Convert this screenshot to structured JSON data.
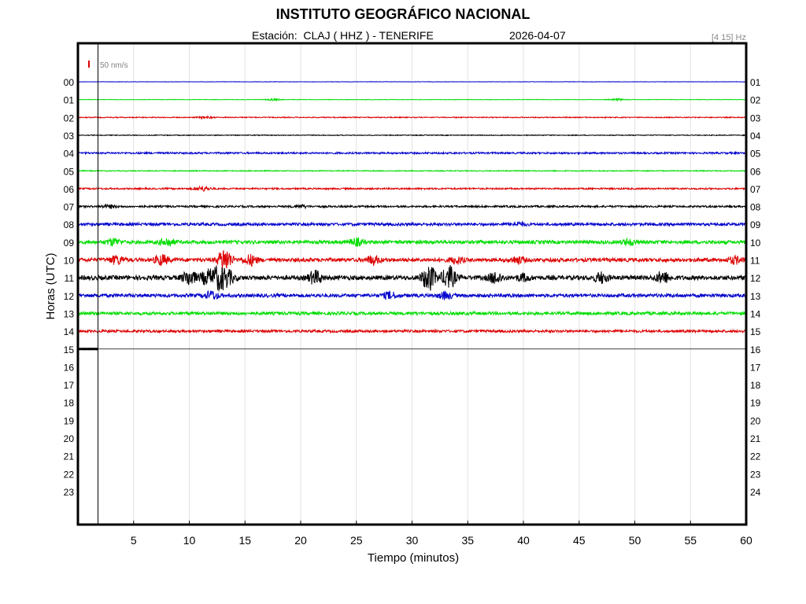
{
  "header": {
    "title": "INSTITUTO GEOGRÁFICO NACIONAL",
    "station": "Estación:  CLAJ ( HHZ ) - TENERIFE",
    "date": "2026-04-07",
    "filter": "[4 15] Hz"
  },
  "chart_data": {
    "type": "line",
    "xlabel": "Tiempo (minutos)",
    "ylabel": "Horas (UTC)",
    "xlim": [
      0,
      60
    ],
    "x_ticks": [
      5,
      10,
      15,
      20,
      25,
      30,
      35,
      40,
      45,
      50,
      55,
      60
    ],
    "left_hour_labels": [
      "00",
      "01",
      "02",
      "03",
      "04",
      "05",
      "06",
      "07",
      "08",
      "09",
      "10",
      "11",
      "12",
      "13",
      "14",
      "15",
      "16",
      "17",
      "18",
      "19",
      "20",
      "21",
      "22",
      "23"
    ],
    "right_hour_labels": [
      "01",
      "02",
      "03",
      "04",
      "05",
      "06",
      "07",
      "08",
      "09",
      "10",
      "11",
      "12",
      "13",
      "14",
      "15",
      "16",
      "17",
      "18",
      "19",
      "20",
      "21",
      "22",
      "23",
      "24"
    ],
    "scale_label": "50 nm/s",
    "scale_color": "#dd0000",
    "grid": true,
    "current_time_minute": 1.8,
    "series": [
      {
        "hour": "00",
        "color": "#0000cc",
        "noise": 0.25,
        "events": []
      },
      {
        "hour": "01",
        "color": "#00dd00",
        "noise": 0.3,
        "events": [
          {
            "t": 17.5,
            "amp": 1.2
          },
          {
            "t": 48.5,
            "amp": 1.2
          }
        ]
      },
      {
        "hour": "02",
        "color": "#dd0000",
        "noise": 0.6,
        "events": [
          {
            "t": 11.5,
            "amp": 1.2
          }
        ]
      },
      {
        "hour": "03",
        "color": "#000000",
        "noise": 0.5,
        "events": []
      },
      {
        "hour": "04",
        "color": "#0000cc",
        "noise": 1.1,
        "events": []
      },
      {
        "hour": "05",
        "color": "#00dd00",
        "noise": 0.6,
        "events": []
      },
      {
        "hour": "06",
        "color": "#dd0000",
        "noise": 1.0,
        "events": [
          {
            "t": 11.2,
            "amp": 3
          }
        ]
      },
      {
        "hour": "07",
        "color": "#000000",
        "noise": 1.2,
        "events": [
          {
            "t": 2.8,
            "amp": 2
          },
          {
            "t": 20.0,
            "amp": 1.6
          }
        ]
      },
      {
        "hour": "08",
        "color": "#0000cc",
        "noise": 1.8,
        "events": [
          {
            "t": 39.5,
            "amp": 2.2
          }
        ]
      },
      {
        "hour": "09",
        "color": "#00dd00",
        "noise": 2.2,
        "events": [
          {
            "t": 3.2,
            "amp": 4
          },
          {
            "t": 8.0,
            "amp": 5
          },
          {
            "t": 25.0,
            "amp": 4
          },
          {
            "t": 49.5,
            "amp": 3.5
          }
        ]
      },
      {
        "hour": "10",
        "color": "#dd0000",
        "noise": 2.4,
        "events": [
          {
            "t": 3.5,
            "amp": 5
          },
          {
            "t": 7.5,
            "amp": 6
          },
          {
            "t": 13.2,
            "amp": 14
          },
          {
            "t": 15.5,
            "amp": 6
          },
          {
            "t": 26.5,
            "amp": 5
          },
          {
            "t": 34.0,
            "amp": 4
          },
          {
            "t": 39.5,
            "amp": 4
          },
          {
            "t": 59.0,
            "amp": 4
          }
        ]
      },
      {
        "hour": "11",
        "color": "#000000",
        "noise": 2.8,
        "events": [
          {
            "t": 10.0,
            "amp": 9
          },
          {
            "t": 11.6,
            "amp": 8
          },
          {
            "t": 12.6,
            "amp": 13
          },
          {
            "t": 13.4,
            "amp": 9
          },
          {
            "t": 21.3,
            "amp": 8
          },
          {
            "t": 31.5,
            "amp": 16
          },
          {
            "t": 33.3,
            "amp": 14
          },
          {
            "t": 37.5,
            "amp": 7
          },
          {
            "t": 40.0,
            "amp": 4
          },
          {
            "t": 47.0,
            "amp": 6
          },
          {
            "t": 52.5,
            "amp": 7
          }
        ]
      },
      {
        "hour": "12",
        "color": "#0000cc",
        "noise": 2.2,
        "events": [
          {
            "t": 12.0,
            "amp": 5
          },
          {
            "t": 28.0,
            "amp": 4
          },
          {
            "t": 33.0,
            "amp": 4
          }
        ]
      },
      {
        "hour": "13",
        "color": "#00dd00",
        "noise": 2.0,
        "events": []
      },
      {
        "hour": "14",
        "color": "#dd0000",
        "noise": 1.6,
        "events": []
      },
      {
        "hour": "15",
        "color": "#000000",
        "noise": 0.9,
        "events": [],
        "end_minute": 1.8
      }
    ]
  }
}
